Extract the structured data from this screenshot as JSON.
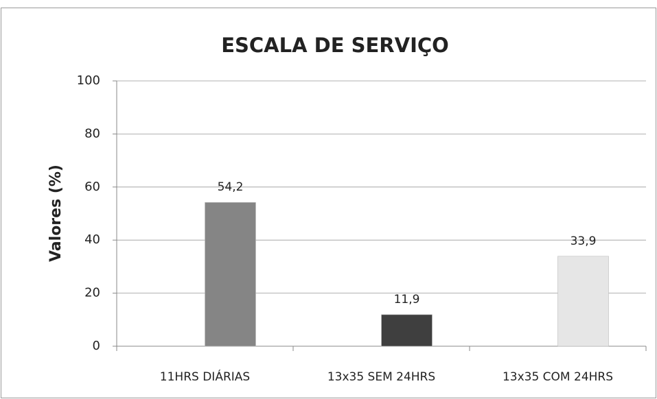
{
  "chart_data": {
    "type": "bar",
    "title": "ESCALA DE SERVIÇO",
    "y_label": "Valores (%)",
    "categories": [
      "11HRS DIÁRIAS",
      "13x35 SEM 24HRS",
      "13x35 COM 24HRS"
    ],
    "values": [
      54.2,
      11.9,
      33.9
    ],
    "value_labels": [
      "54,2",
      "11,9",
      "33,9"
    ],
    "colors": [
      "#858585",
      "#3f3f3f",
      "#e6e6e6"
    ],
    "ylim": [
      0,
      100
    ],
    "yticks": [
      0,
      20,
      40,
      60,
      80,
      100
    ],
    "grid": true
  }
}
